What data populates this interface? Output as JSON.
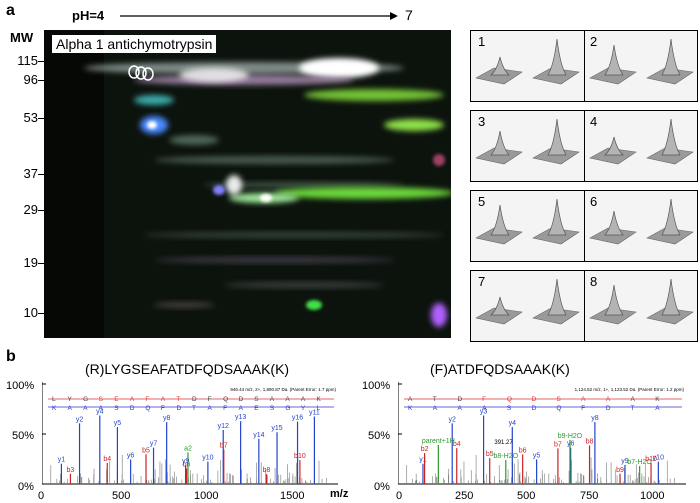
{
  "panel_a": {
    "label": "a",
    "gel_title": "Alpha 1 antichymotrypsin",
    "ph_prefix": "pH=",
    "ph_start": "4",
    "ph_end": "7",
    "mw_label": "MW",
    "mw_markers": [
      "115",
      "96",
      "53",
      "37",
      "29",
      "19",
      "10"
    ],
    "thumbnails": [
      "1",
      "2",
      "3",
      "4",
      "5",
      "6",
      "7",
      "8"
    ]
  },
  "panel_b": {
    "label": "b",
    "spectra": [
      {
        "title": "(R)LYGSEAFATDFQDSAAAK(K)",
        "y_ticks": [
          "100%",
          "50%",
          "0%"
        ],
        "x_ticks": [
          "0",
          "500",
          "1000",
          "1500"
        ],
        "x_unit": "m/z",
        "header": "946.44 m/z, 2+, 1,890.87 Da. (Parent Error: 1.7 ppm)",
        "top_seq": [
          "L",
          "Y",
          "G",
          "S",
          "E",
          "A",
          "F",
          "A",
          "T",
          "D",
          "F",
          "Q",
          "D",
          "S",
          "A",
          "A",
          "A",
          "K"
        ],
        "bottom_seq": [
          "K",
          "A",
          "A",
          "A",
          "S",
          "D",
          "Q",
          "F",
          "D",
          "T",
          "A",
          "F",
          "A",
          "E",
          "S",
          "G",
          "Y",
          "L"
        ],
        "blue_labels": [
          "y1",
          "y2",
          "y4",
          "y5",
          "y6",
          "y7",
          "y8",
          "y9",
          "y10",
          "y12",
          "y13",
          "y14",
          "y15",
          "y16",
          "y11"
        ],
        "red_labels": [
          "b3",
          "b4",
          "b5",
          "b6",
          "b7",
          "b8",
          "b10"
        ],
        "green_labels": [
          "a2"
        ]
      },
      {
        "title": "(F)ATDFQDSAAAK(K)",
        "y_ticks": [
          "100%",
          "50%",
          "0%"
        ],
        "x_ticks": [
          "0",
          "250",
          "500",
          "750",
          "1000"
        ],
        "x_unit": "",
        "header": "1,124.52 m/z, 1+, 1,123.52 Da. (Parent Error: 1.2 ppm)",
        "top_seq": [
          "A",
          "T",
          "D",
          "F",
          "Q",
          "D",
          "S",
          "A",
          "A",
          "A",
          "K"
        ],
        "bottom_seq": [
          "K",
          "A",
          "A",
          "A",
          "S",
          "D",
          "Q",
          "F",
          "D",
          "T",
          "A"
        ],
        "blue_labels": [
          "y1",
          "y2",
          "y3",
          "y4",
          "y5",
          "y6",
          "y8",
          "y9",
          "y10"
        ],
        "red_labels": [
          "b2",
          "b4",
          "b5",
          "b6",
          "b7",
          "b8",
          "b9",
          "b10"
        ],
        "green_labels": [
          "parent+1H",
          "b8-H2O",
          "b9-H2O",
          "b7-H2O"
        ],
        "annotation": "391.27"
      }
    ]
  }
}
